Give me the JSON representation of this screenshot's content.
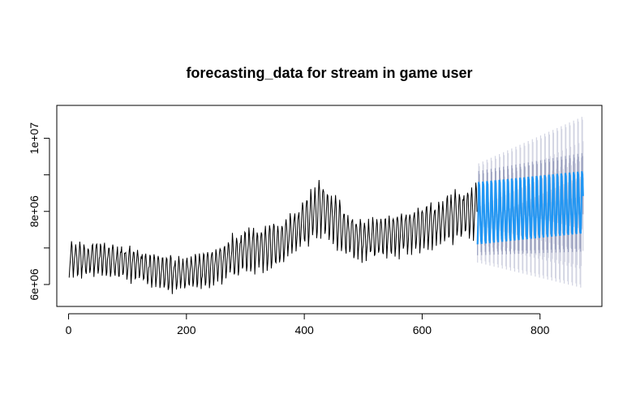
{
  "chart_data": {
    "type": "line",
    "title": "forecasting_data for stream in game user",
    "xlabel": "",
    "ylabel": "",
    "xlim": [
      -20,
      905
    ],
    "ylim": [
      5400000,
      10900000
    ],
    "x_ticks": [
      0,
      200,
      400,
      600,
      800
    ],
    "x_tick_labels": [
      "0",
      "200",
      "400",
      "600",
      "800"
    ],
    "y_ticks": [
      6000000,
      7000000,
      8000000,
      9000000,
      10000000
    ],
    "y_tick_labels": [
      "6e+06",
      "",
      "8e+06",
      "",
      "1e+07"
    ],
    "grid": false,
    "legend": "none",
    "history": {
      "x_start": 1,
      "x_end": 693,
      "season_period": 7,
      "trend_knots": [
        [
          1,
          6600000
        ],
        [
          50,
          6600000
        ],
        [
          100,
          6500000
        ],
        [
          170,
          6200000
        ],
        [
          230,
          6300000
        ],
        [
          300,
          6800000
        ],
        [
          360,
          7000000
        ],
        [
          400,
          7600000
        ],
        [
          430,
          8000000
        ],
        [
          470,
          7300000
        ],
        [
          500,
          7100000
        ],
        [
          560,
          7300000
        ],
        [
          610,
          7500000
        ],
        [
          650,
          7700000
        ],
        [
          693,
          7900000
        ]
      ],
      "amplitude_knots": [
        [
          1,
          600000
        ],
        [
          200,
          600000
        ],
        [
          300,
          750000
        ],
        [
          380,
          800000
        ],
        [
          430,
          1000000
        ],
        [
          500,
          700000
        ],
        [
          693,
          900000
        ]
      ]
    },
    "forecast": {
      "x_start": 694,
      "x_end": 873,
      "season_period": 7,
      "mean_low": [
        694,
        7100000,
        873,
        7400000
      ],
      "mean_high": [
        694,
        8800000,
        873,
        9100000
      ],
      "interval_80_halfwidth": [
        694,
        300000,
        873,
        500000
      ],
      "interval_95_halfwidth": [
        694,
        500000,
        873,
        1500000
      ]
    },
    "colors": {
      "history": "#000000",
      "forecast_mean": "#2196f3",
      "interval_80": "#9aa0bf",
      "interval_95": "#d2d4e2",
      "axis": "#000000"
    }
  }
}
